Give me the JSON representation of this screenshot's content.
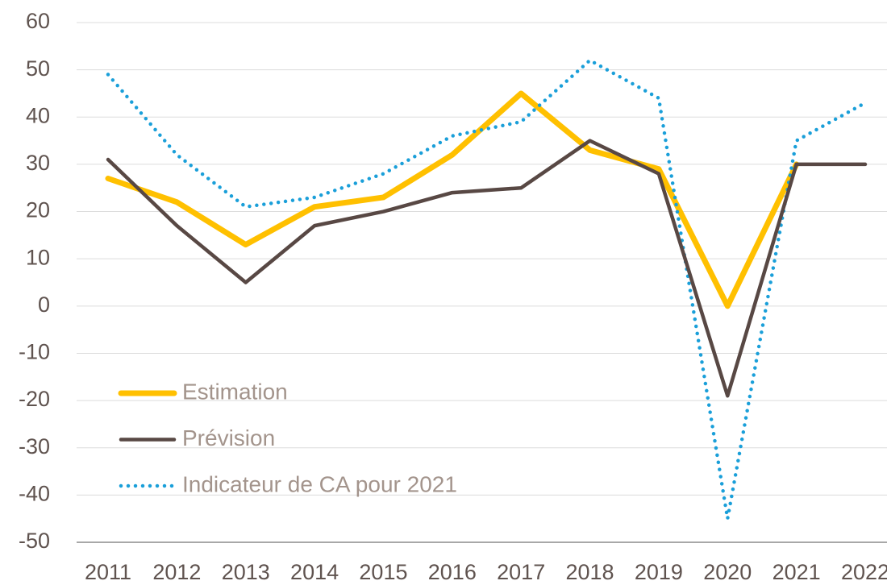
{
  "chart_data": {
    "type": "line",
    "x": [
      "2011",
      "2012",
      "2013",
      "2014",
      "2015",
      "2016",
      "2017",
      "2018",
      "2019",
      "2020",
      "2021",
      "2022"
    ],
    "series": [
      {
        "name": "Estimation",
        "color": "#ffc000",
        "line_style": "solid",
        "values": [
          27,
          22,
          13,
          21,
          23,
          32,
          45,
          33,
          29,
          0,
          30,
          null
        ]
      },
      {
        "name": "Prévision",
        "color": "#584844",
        "line_style": "solid",
        "values": [
          31,
          17,
          5,
          17,
          20,
          24,
          25,
          35,
          28,
          -19,
          30,
          30
        ]
      },
      {
        "name": "Indicateur de CA pour 2021",
        "color": "#1a9fd9",
        "line_style": "dotted",
        "values": [
          49,
          32,
          21,
          23,
          28,
          36,
          39,
          52,
          44,
          -45,
          35,
          43
        ]
      }
    ],
    "ylim": [
      -50,
      60
    ],
    "yticks": [
      -50,
      -40,
      -30,
      -20,
      -10,
      0,
      10,
      20,
      30,
      40,
      50,
      60
    ],
    "grid": true,
    "legend": "lower left"
  }
}
